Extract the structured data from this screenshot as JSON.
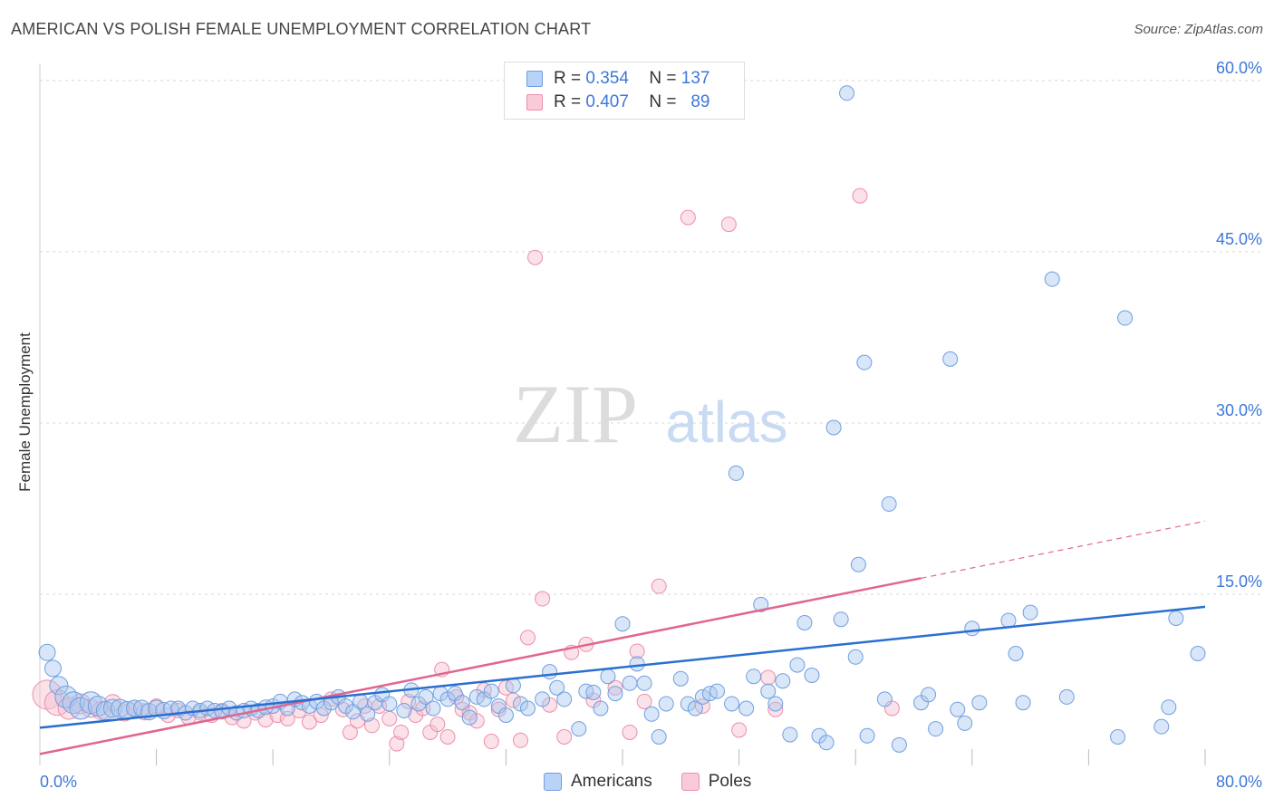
{
  "header": {
    "title": "AMERICAN VS POLISH FEMALE UNEMPLOYMENT CORRELATION CHART",
    "source": "Source: ZipAtlas.com"
  },
  "watermark": {
    "zip": "ZIP",
    "atlas": "atlas"
  },
  "legend": {
    "rows": [
      {
        "r_label": "R =",
        "r_value": "0.354",
        "n_label": "N =",
        "n_value": "137"
      },
      {
        "r_label": "R =",
        "r_value": "0.407",
        "n_label": "N =",
        "n_value": "89"
      }
    ]
  },
  "bottom_legend": {
    "americans": "Americans",
    "poles": "Poles"
  },
  "colors": {
    "americans_fill": "#a9c8f0",
    "americans_stroke": "#6f9fe0",
    "americans_line": "#2a6fd0",
    "poles_fill": "#f7bccd",
    "poles_stroke": "#ec8fab",
    "poles_line": "#e0668f",
    "tick_label": "#3d78d8",
    "grid": "#d7d7d7"
  },
  "chart_data": {
    "type": "scatter",
    "title": "AMERICAN VS POLISH FEMALE UNEMPLOYMENT CORRELATION CHART",
    "xlabel": "",
    "ylabel": "Female Unemployment",
    "xlim": [
      0,
      80
    ],
    "ylim": [
      0,
      61.5
    ],
    "x_tick_labels": [
      "0.0%",
      "80.0%"
    ],
    "y_ticks": [
      15,
      30,
      45,
      60
    ],
    "y_tick_labels": [
      "15.0%",
      "30.0%",
      "45.0%",
      "60.0%"
    ],
    "grid": "horizontal dashed",
    "legend_placement": "top-center",
    "series": [
      {
        "name": "Americans",
        "r": 0.354,
        "n": 137,
        "trend": {
          "x0": 0,
          "y0": 3.3,
          "x1": 80,
          "y1": 13.9
        },
        "points": [
          [
            0.5,
            9.9,
            9
          ],
          [
            0.9,
            8.5,
            9
          ],
          [
            1.3,
            7.0,
            10
          ],
          [
            1.8,
            6.0,
            12
          ],
          [
            2.3,
            5.5,
            12
          ],
          [
            2.8,
            5.0,
            12
          ],
          [
            3.5,
            5.5,
            12
          ],
          [
            4.0,
            5.2,
            11
          ],
          [
            4.5,
            4.8,
            10
          ],
          [
            5.0,
            5.0,
            10
          ],
          [
            5.5,
            5.0,
            10
          ],
          [
            6.0,
            4.8,
            10
          ],
          [
            6.5,
            5.0,
            9
          ],
          [
            7.0,
            5.0,
            9
          ],
          [
            7.5,
            4.7,
            9
          ],
          [
            8.0,
            5.0,
            9
          ],
          [
            8.5,
            4.8,
            9
          ],
          [
            9.0,
            5.0,
            8
          ],
          [
            9.5,
            5.0,
            8
          ],
          [
            10.0,
            4.6,
            8
          ],
          [
            10.5,
            5.0,
            8
          ],
          [
            11.0,
            4.8,
            8
          ],
          [
            11.5,
            5.0,
            8
          ],
          [
            12.0,
            4.8,
            8
          ],
          [
            12.5,
            4.7,
            8
          ],
          [
            13.0,
            5.0,
            8
          ],
          [
            13.5,
            4.6,
            8
          ],
          [
            14.0,
            4.8,
            8
          ],
          [
            14.5,
            5.0,
            8
          ],
          [
            15.0,
            4.8,
            8
          ],
          [
            15.5,
            5.1,
            8
          ],
          [
            16.0,
            5.2,
            8
          ],
          [
            16.5,
            5.6,
            8
          ],
          [
            17.0,
            5.0,
            8
          ],
          [
            17.5,
            5.8,
            8
          ],
          [
            18.0,
            5.5,
            8
          ],
          [
            18.5,
            5.2,
            8
          ],
          [
            19.0,
            5.6,
            8
          ],
          [
            19.5,
            5.0,
            8
          ],
          [
            20.0,
            5.5,
            8
          ],
          [
            20.5,
            6.0,
            8
          ],
          [
            21.0,
            5.2,
            8
          ],
          [
            21.5,
            4.7,
            8
          ],
          [
            22.0,
            5.6,
            8
          ],
          [
            22.5,
            4.5,
            8
          ],
          [
            23.0,
            5.5,
            8
          ],
          [
            23.5,
            6.2,
            8
          ],
          [
            24.0,
            5.4,
            8
          ],
          [
            25.0,
            4.8,
            8
          ],
          [
            25.5,
            6.6,
            8
          ],
          [
            26.0,
            5.4,
            8
          ],
          [
            26.5,
            6.0,
            8
          ],
          [
            27.0,
            5.0,
            8
          ],
          [
            27.5,
            6.3,
            8
          ],
          [
            28.0,
            5.8,
            8
          ],
          [
            28.5,
            6.3,
            8
          ],
          [
            29.0,
            5.5,
            8
          ],
          [
            29.5,
            4.2,
            8
          ],
          [
            30.0,
            6.0,
            8
          ],
          [
            30.5,
            5.8,
            8
          ],
          [
            31.0,
            6.5,
            8
          ],
          [
            31.5,
            5.2,
            8
          ],
          [
            32.0,
            4.4,
            8
          ],
          [
            32.5,
            7.0,
            8
          ],
          [
            33.0,
            5.4,
            8
          ],
          [
            33.5,
            5.0,
            8
          ],
          [
            34.5,
            5.8,
            8
          ],
          [
            35.0,
            8.2,
            8
          ],
          [
            35.5,
            6.8,
            8
          ],
          [
            36.0,
            5.8,
            8
          ],
          [
            37.0,
            3.2,
            8
          ],
          [
            37.5,
            6.5,
            8
          ],
          [
            38.0,
            6.4,
            8
          ],
          [
            38.5,
            5.0,
            8
          ],
          [
            39.0,
            7.8,
            8
          ],
          [
            39.5,
            6.3,
            8
          ],
          [
            40.0,
            12.4,
            8
          ],
          [
            40.5,
            7.2,
            8
          ],
          [
            41.0,
            8.9,
            8
          ],
          [
            41.5,
            7.2,
            8
          ],
          [
            42.0,
            4.5,
            8
          ],
          [
            42.5,
            2.5,
            8
          ],
          [
            43.0,
            5.4,
            8
          ],
          [
            44.0,
            7.6,
            8
          ],
          [
            44.5,
            5.4,
            8
          ],
          [
            45.0,
            5.0,
            8
          ],
          [
            45.5,
            6.0,
            8
          ],
          [
            46.0,
            6.3,
            8
          ],
          [
            46.5,
            6.5,
            8
          ],
          [
            47.5,
            5.4,
            8
          ],
          [
            47.8,
            25.6,
            8
          ],
          [
            48.5,
            5.0,
            8
          ],
          [
            49.0,
            7.8,
            8
          ],
          [
            49.5,
            14.1,
            8
          ],
          [
            50.0,
            6.5,
            8
          ],
          [
            50.5,
            5.4,
            8
          ],
          [
            51.0,
            7.4,
            8
          ],
          [
            51.5,
            2.7,
            8
          ],
          [
            52.0,
            8.8,
            8
          ],
          [
            52.5,
            12.5,
            8
          ],
          [
            53.0,
            7.9,
            8
          ],
          [
            53.5,
            2.6,
            8
          ],
          [
            54.0,
            2.0,
            8
          ],
          [
            54.5,
            29.6,
            8
          ],
          [
            55.0,
            12.8,
            8
          ],
          [
            55.4,
            58.9,
            8
          ],
          [
            56.0,
            9.5,
            8
          ],
          [
            56.2,
            17.6,
            8
          ],
          [
            56.6,
            35.3,
            8
          ],
          [
            56.8,
            2.6,
            8
          ],
          [
            58.0,
            5.8,
            8
          ],
          [
            58.3,
            22.9,
            8
          ],
          [
            59.0,
            1.8,
            8
          ],
          [
            60.5,
            5.5,
            8
          ],
          [
            61.0,
            6.2,
            8
          ],
          [
            61.5,
            3.2,
            8
          ],
          [
            62.5,
            35.6,
            8
          ],
          [
            63.0,
            4.9,
            8
          ],
          [
            63.5,
            3.7,
            8
          ],
          [
            64.0,
            12.0,
            8
          ],
          [
            64.5,
            5.5,
            8
          ],
          [
            66.5,
            12.7,
            8
          ],
          [
            67.0,
            9.8,
            8
          ],
          [
            67.5,
            5.5,
            8
          ],
          [
            68.0,
            13.4,
            8
          ],
          [
            69.5,
            42.6,
            8
          ],
          [
            70.5,
            6.0,
            8
          ],
          [
            74.5,
            39.2,
            8
          ],
          [
            74.0,
            2.5,
            8
          ],
          [
            77.0,
            3.4,
            8
          ],
          [
            77.5,
            5.1,
            8
          ],
          [
            78.0,
            12.9,
            8
          ],
          [
            79.5,
            9.8,
            8
          ]
        ]
      },
      {
        "name": "Poles",
        "r": 0.407,
        "n": 89,
        "trend": {
          "x0": 0,
          "y0": 1.0,
          "x1": 60.5,
          "y1": 16.4,
          "dash_x1": 80,
          "dash_y1": 21.4
        },
        "points": [
          [
            0.5,
            6.2,
            16
          ],
          [
            1.2,
            5.5,
            14
          ],
          [
            2.0,
            5.0,
            12
          ],
          [
            2.8,
            5.4,
            11
          ],
          [
            3.5,
            5.0,
            10
          ],
          [
            4.2,
            4.8,
            10
          ],
          [
            5.0,
            5.5,
            9
          ],
          [
            5.8,
            4.6,
            9
          ],
          [
            6.5,
            5.0,
            9
          ],
          [
            7.2,
            4.7,
            9
          ],
          [
            8.0,
            5.2,
            8
          ],
          [
            8.8,
            4.4,
            8
          ],
          [
            9.5,
            4.8,
            8
          ],
          [
            10.2,
            4.2,
            8
          ],
          [
            11.0,
            4.6,
            8
          ],
          [
            11.8,
            4.4,
            8
          ],
          [
            12.5,
            4.8,
            8
          ],
          [
            13.2,
            4.2,
            8
          ],
          [
            14.0,
            3.9,
            8
          ],
          [
            14.8,
            4.6,
            8
          ],
          [
            15.5,
            4.0,
            8
          ],
          [
            16.3,
            4.4,
            8
          ],
          [
            17.0,
            4.1,
            8
          ],
          [
            17.8,
            4.8,
            8
          ],
          [
            18.5,
            3.8,
            8
          ],
          [
            19.3,
            4.4,
            8
          ],
          [
            20.0,
            5.8,
            8
          ],
          [
            20.8,
            4.9,
            8
          ],
          [
            21.3,
            2.9,
            8
          ],
          [
            21.8,
            3.9,
            8
          ],
          [
            22.3,
            5.2,
            8
          ],
          [
            22.8,
            3.5,
            8
          ],
          [
            23.3,
            5.2,
            8
          ],
          [
            24.0,
            4.1,
            8
          ],
          [
            24.5,
            1.9,
            8
          ],
          [
            24.8,
            2.9,
            8
          ],
          [
            25.3,
            5.6,
            8
          ],
          [
            25.8,
            4.4,
            8
          ],
          [
            26.3,
            5.0,
            8
          ],
          [
            26.8,
            2.9,
            8
          ],
          [
            27.3,
            3.6,
            8
          ],
          [
            27.6,
            8.4,
            8
          ],
          [
            28.0,
            2.5,
            8
          ],
          [
            28.6,
            6.0,
            8
          ],
          [
            29.0,
            4.9,
            8
          ],
          [
            29.5,
            4.6,
            8
          ],
          [
            30.0,
            3.9,
            8
          ],
          [
            30.5,
            6.6,
            8
          ],
          [
            31.0,
            2.1,
            8
          ],
          [
            31.5,
            4.9,
            8
          ],
          [
            32.0,
            6.8,
            8
          ],
          [
            32.5,
            5.7,
            8
          ],
          [
            33.0,
            2.2,
            8
          ],
          [
            33.5,
            11.2,
            8
          ],
          [
            34.0,
            44.5,
            8
          ],
          [
            34.5,
            14.6,
            8
          ],
          [
            35.0,
            5.3,
            8
          ],
          [
            36.0,
            2.5,
            8
          ],
          [
            36.5,
            9.9,
            8
          ],
          [
            37.5,
            10.6,
            8
          ],
          [
            38.0,
            5.7,
            8
          ],
          [
            39.5,
            6.8,
            8
          ],
          [
            40.5,
            2.9,
            8
          ],
          [
            41.0,
            10.0,
            8
          ],
          [
            41.5,
            5.6,
            8
          ],
          [
            42.5,
            15.7,
            8
          ],
          [
            44.5,
            48.0,
            8
          ],
          [
            45.5,
            5.2,
            8
          ],
          [
            47.3,
            47.4,
            8
          ],
          [
            48.0,
            3.1,
            8
          ],
          [
            50.0,
            7.7,
            8
          ],
          [
            50.5,
            4.9,
            8
          ],
          [
            56.3,
            49.9,
            8
          ],
          [
            58.5,
            5.0,
            8
          ]
        ]
      }
    ]
  }
}
